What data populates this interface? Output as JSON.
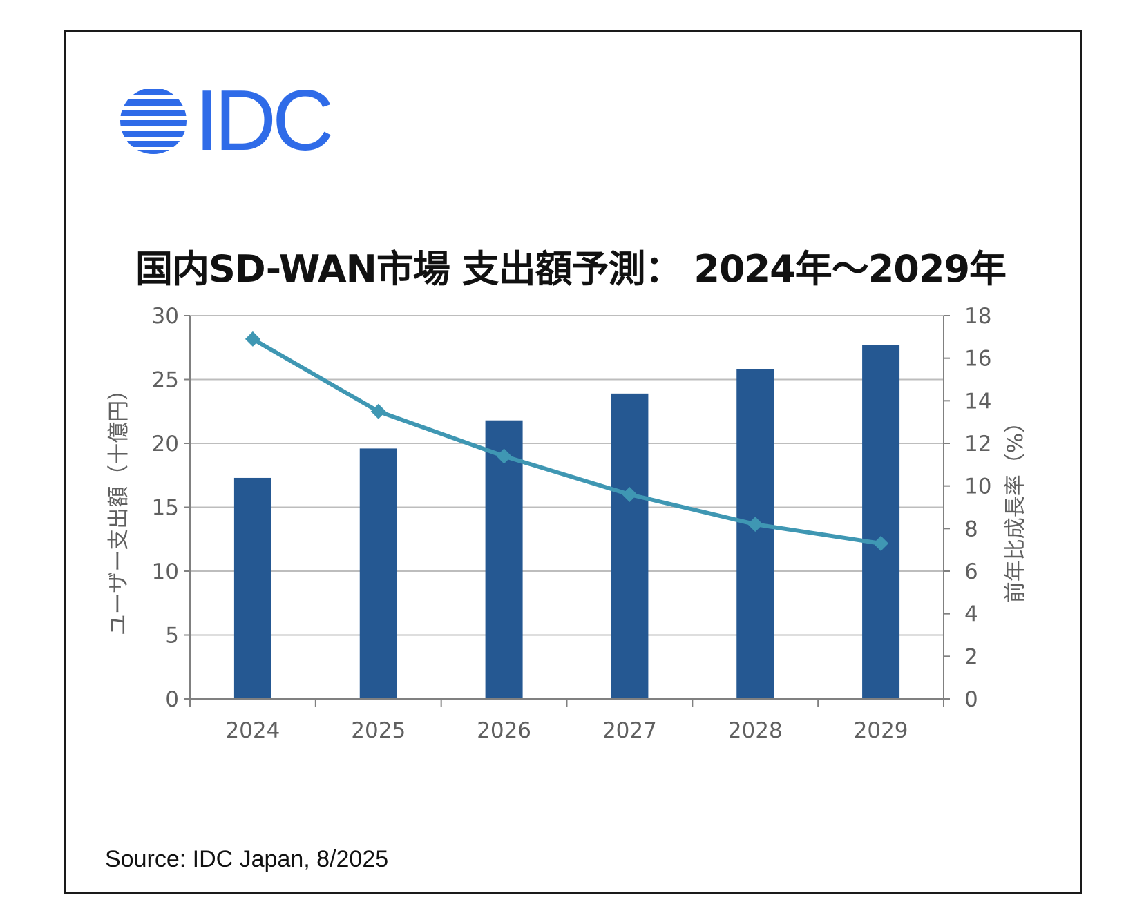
{
  "logo": {
    "text": "IDC",
    "color": "#2f6be8"
  },
  "title": "国内SD-WAN市場 支出額予測： 2024年～2029年",
  "source": "Source: IDC Japan, 8/2025",
  "chart_data": {
    "type": "bar+line",
    "title": "国内SD-WAN市場 支出額予測： 2024年～2029年",
    "categories": [
      "2024",
      "2025",
      "2026",
      "2027",
      "2028",
      "2029"
    ],
    "series": [
      {
        "name": "ユーザー支出額（十億円）",
        "type": "bar",
        "axis": "left",
        "values": [
          17.3,
          19.6,
          21.8,
          23.9,
          25.8,
          27.7
        ],
        "color": "#255892"
      },
      {
        "name": "前年比成長率（%）",
        "type": "line",
        "axis": "right",
        "values": [
          16.9,
          13.5,
          11.4,
          9.6,
          8.2,
          7.3
        ],
        "color": "#3f97b3"
      }
    ],
    "ylabel": "ユーザー支出額（十億円）",
    "y2label": "前年比成長率（%）",
    "ylim": [
      0,
      30
    ],
    "y2lim": [
      0,
      18
    ],
    "yticks": [
      "0",
      "5",
      "10",
      "15",
      "20",
      "25",
      "30"
    ],
    "y2ticks": [
      "0",
      "2",
      "4",
      "6",
      "8",
      "10",
      "12",
      "14",
      "16",
      "18"
    ],
    "grid": true
  }
}
